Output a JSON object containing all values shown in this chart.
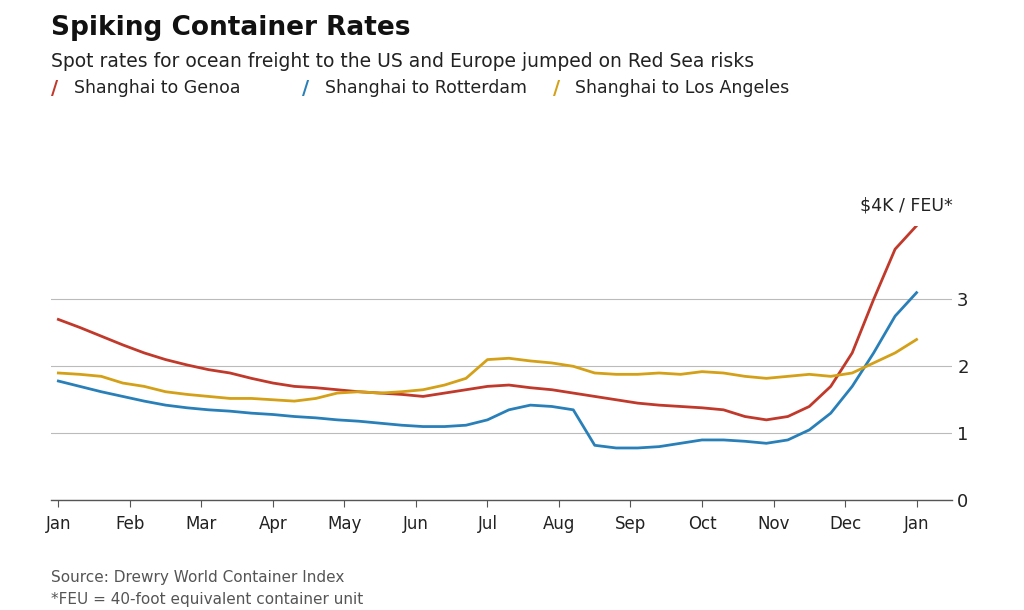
{
  "title": "Spiking Container Rates",
  "subtitle": "Spot rates for ocean freight to the US and Europe jumped on Red Sea risks",
  "ylabel": "$4K / FEU*",
  "footnote1": "Source: Drewry World Container Index",
  "footnote2": "*FEU = 40-foot equivalent container unit",
  "legend": [
    "Shanghai to Genoa",
    "Shanghai to Rotterdam",
    "Shanghai to Los Angeles"
  ],
  "colors": [
    "#c0392b",
    "#2980b9",
    "#d4a017"
  ],
  "ylim": [
    0,
    4.1
  ],
  "yticks": [
    0,
    1,
    2,
    3
  ],
  "background_color": "#ffffff",
  "x_tick_labels": [
    "Jan",
    "Feb",
    "Mar",
    "Apr",
    "May",
    "Jun",
    "Jul",
    "Aug",
    "Sep",
    "Oct",
    "Nov",
    "Dec",
    "Jan"
  ],
  "genoa": [
    2.7,
    2.58,
    2.45,
    2.32,
    2.2,
    2.1,
    2.02,
    1.95,
    1.9,
    1.82,
    1.75,
    1.7,
    1.68,
    1.65,
    1.62,
    1.6,
    1.58,
    1.55,
    1.6,
    1.65,
    1.7,
    1.72,
    1.68,
    1.65,
    1.6,
    1.55,
    1.5,
    1.45,
    1.42,
    1.4,
    1.38,
    1.35,
    1.25,
    1.2,
    1.25,
    1.4,
    1.7,
    2.2,
    3.0,
    3.75,
    4.1
  ],
  "rotterdam": [
    1.78,
    1.7,
    1.62,
    1.55,
    1.48,
    1.42,
    1.38,
    1.35,
    1.33,
    1.3,
    1.28,
    1.25,
    1.23,
    1.2,
    1.18,
    1.15,
    1.12,
    1.1,
    1.1,
    1.12,
    1.2,
    1.35,
    1.42,
    1.4,
    1.35,
    0.82,
    0.78,
    0.78,
    0.8,
    0.85,
    0.9,
    0.9,
    0.88,
    0.85,
    0.9,
    1.05,
    1.3,
    1.7,
    2.2,
    2.75,
    3.1
  ],
  "la": [
    1.9,
    1.88,
    1.85,
    1.75,
    1.7,
    1.62,
    1.58,
    1.55,
    1.52,
    1.52,
    1.5,
    1.48,
    1.52,
    1.6,
    1.62,
    1.6,
    1.62,
    1.65,
    1.72,
    1.82,
    2.1,
    2.12,
    2.08,
    2.05,
    2.0,
    1.9,
    1.88,
    1.88,
    1.9,
    1.88,
    1.92,
    1.9,
    1.85,
    1.82,
    1.85,
    1.88,
    1.85,
    1.9,
    2.05,
    2.2,
    2.4
  ]
}
